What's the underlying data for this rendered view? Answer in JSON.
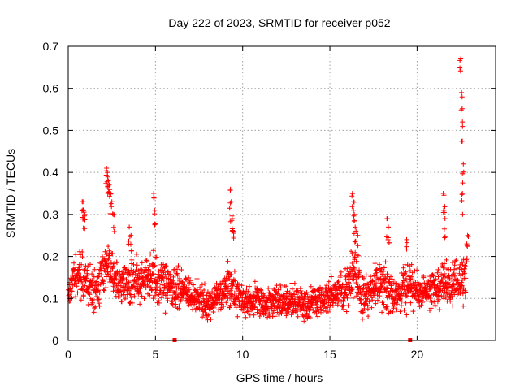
{
  "chart_data": {
    "type": "scatter",
    "title": "Day 222 of 2023, SRMTID for receiver p052",
    "xlabel": "GPS time / hours",
    "ylabel": "SRMTID / TECUs",
    "xlim": [
      0,
      24.5
    ],
    "ylim": [
      0,
      0.7
    ],
    "xticks": [
      0,
      5,
      10,
      15,
      20
    ],
    "yticks": [
      0,
      0.1,
      0.2,
      0.3,
      0.4,
      0.5,
      0.6,
      0.7
    ],
    "xtick_labels": [
      "0",
      "5",
      "10",
      "15",
      "20"
    ],
    "ytick_labels": [
      "0",
      "0.1",
      "0.2",
      "0.3",
      "0.4",
      "0.5",
      "0.6",
      "0.7"
    ],
    "grid": true,
    "marker": "plus",
    "color": "#ff0000",
    "zero_flags_x": [
      6.1,
      19.6
    ],
    "profile": [
      [
        0.0,
        0.12,
        0.03
      ],
      [
        0.4,
        0.15,
        0.04
      ],
      [
        0.8,
        0.15,
        0.05
      ],
      [
        1.2,
        0.13,
        0.04
      ],
      [
        1.6,
        0.12,
        0.04
      ],
      [
        2.0,
        0.17,
        0.05
      ],
      [
        2.4,
        0.19,
        0.06
      ],
      [
        2.8,
        0.14,
        0.05
      ],
      [
        3.2,
        0.13,
        0.04
      ],
      [
        3.6,
        0.15,
        0.05
      ],
      [
        4.0,
        0.14,
        0.04
      ],
      [
        4.4,
        0.15,
        0.04
      ],
      [
        4.8,
        0.16,
        0.05
      ],
      [
        5.2,
        0.14,
        0.04
      ],
      [
        5.6,
        0.13,
        0.04
      ],
      [
        6.0,
        0.12,
        0.04
      ],
      [
        6.4,
        0.13,
        0.04
      ],
      [
        6.8,
        0.12,
        0.04
      ],
      [
        7.2,
        0.1,
        0.03
      ],
      [
        7.6,
        0.1,
        0.03
      ],
      [
        8.0,
        0.09,
        0.03
      ],
      [
        8.4,
        0.1,
        0.03
      ],
      [
        8.8,
        0.1,
        0.03
      ],
      [
        9.2,
        0.13,
        0.05
      ],
      [
        9.6,
        0.11,
        0.04
      ],
      [
        10.0,
        0.09,
        0.03
      ],
      [
        10.4,
        0.09,
        0.03
      ],
      [
        10.8,
        0.1,
        0.03
      ],
      [
        11.2,
        0.09,
        0.03
      ],
      [
        11.6,
        0.09,
        0.03
      ],
      [
        12.0,
        0.1,
        0.03
      ],
      [
        12.4,
        0.09,
        0.03
      ],
      [
        12.8,
        0.09,
        0.03
      ],
      [
        13.2,
        0.09,
        0.03
      ],
      [
        13.6,
        0.08,
        0.03
      ],
      [
        14.0,
        0.09,
        0.03
      ],
      [
        14.4,
        0.1,
        0.03
      ],
      [
        14.8,
        0.1,
        0.03
      ],
      [
        15.2,
        0.11,
        0.03
      ],
      [
        15.6,
        0.11,
        0.04
      ],
      [
        16.0,
        0.13,
        0.04
      ],
      [
        16.4,
        0.18,
        0.06
      ],
      [
        16.8,
        0.1,
        0.03
      ],
      [
        17.2,
        0.11,
        0.04
      ],
      [
        17.6,
        0.13,
        0.04
      ],
      [
        18.0,
        0.14,
        0.05
      ],
      [
        18.4,
        0.12,
        0.04
      ],
      [
        18.8,
        0.1,
        0.03
      ],
      [
        19.2,
        0.12,
        0.04
      ],
      [
        19.6,
        0.13,
        0.05
      ],
      [
        20.0,
        0.12,
        0.04
      ],
      [
        20.4,
        0.11,
        0.03
      ],
      [
        20.8,
        0.12,
        0.04
      ],
      [
        21.2,
        0.13,
        0.04
      ],
      [
        21.6,
        0.14,
        0.05
      ],
      [
        22.0,
        0.13,
        0.04
      ],
      [
        22.4,
        0.15,
        0.05
      ],
      [
        22.8,
        0.15,
        0.05
      ]
    ],
    "spikes": [
      [
        0.8,
        0.33
      ],
      [
        0.85,
        0.33
      ],
      [
        0.9,
        0.31
      ],
      [
        0.95,
        0.3
      ],
      [
        2.2,
        0.41
      ],
      [
        2.25,
        0.4
      ],
      [
        2.3,
        0.38
      ],
      [
        2.35,
        0.37
      ],
      [
        2.4,
        0.35
      ],
      [
        2.5,
        0.33
      ],
      [
        2.6,
        0.3
      ],
      [
        3.5,
        0.27
      ],
      [
        3.6,
        0.25
      ],
      [
        4.9,
        0.35
      ],
      [
        4.95,
        0.31
      ],
      [
        9.3,
        0.36
      ],
      [
        9.35,
        0.33
      ],
      [
        9.4,
        0.29
      ],
      [
        9.45,
        0.26
      ],
      [
        16.3,
        0.35
      ],
      [
        16.35,
        0.33
      ],
      [
        16.4,
        0.3
      ],
      [
        16.45,
        0.27
      ],
      [
        16.6,
        0.25
      ],
      [
        18.3,
        0.29
      ],
      [
        18.35,
        0.27
      ],
      [
        19.4,
        0.24
      ],
      [
        21.5,
        0.35
      ],
      [
        21.55,
        0.32
      ],
      [
        21.6,
        0.29
      ],
      [
        22.5,
        0.67
      ],
      [
        22.55,
        0.59
      ],
      [
        22.6,
        0.52
      ],
      [
        22.65,
        0.42
      ],
      [
        22.6,
        0.35
      ],
      [
        22.9,
        0.25
      ],
      [
        22.85,
        0.23
      ]
    ]
  }
}
